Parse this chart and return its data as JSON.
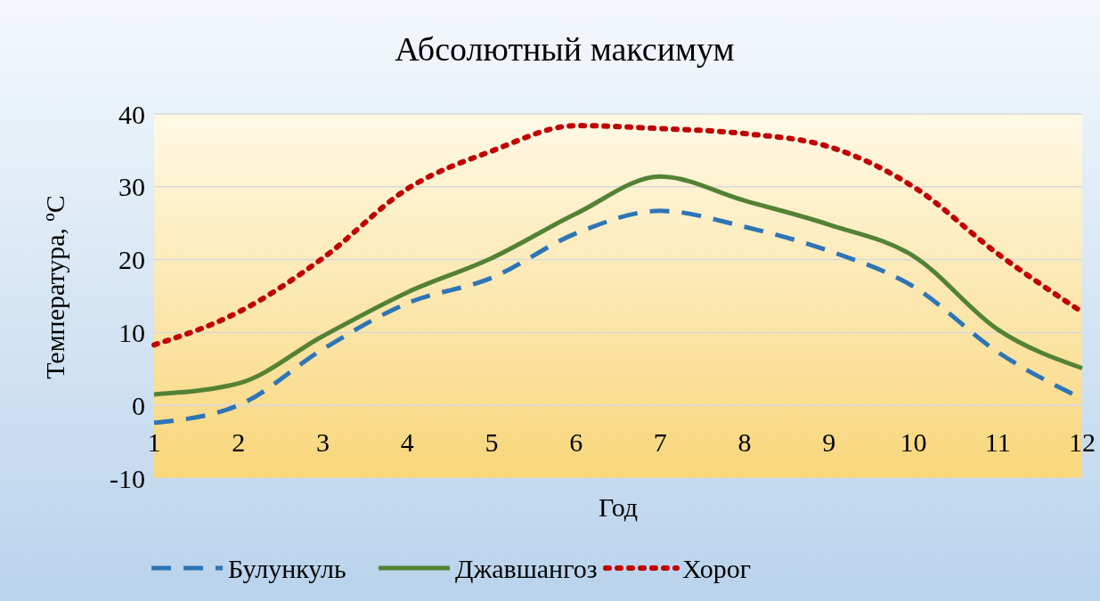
{
  "chart_data": {
    "type": "line",
    "title": "Абсолютный максимум",
    "xlabel": "Год",
    "ylabel": "Температура, ºС",
    "x": [
      1,
      2,
      3,
      4,
      5,
      6,
      7,
      8,
      9,
      10,
      11,
      12
    ],
    "xlim": [
      1,
      12
    ],
    "xticks": [
      1,
      2,
      3,
      4,
      5,
      6,
      7,
      8,
      9,
      10,
      11,
      12
    ],
    "ylim": [
      -10,
      40
    ],
    "yticks": [
      -10,
      0,
      10,
      20,
      30,
      40
    ],
    "grid": "y",
    "legend": "bottom",
    "series": [
      {
        "name": "Булункуль",
        "color": "#2e75b6",
        "line_style": "dashed",
        "values": [
          -2.4,
          0,
          7.7,
          14,
          17.5,
          23.6,
          26.7,
          24.5,
          21.2,
          16.3,
          7.3,
          0.9
        ]
      },
      {
        "name": "Джавшангоз",
        "color": "#548235",
        "line_style": "solid",
        "values": [
          1.5,
          3,
          9.5,
          15.5,
          20.2,
          26.3,
          31.4,
          28.1,
          24.8,
          20.5,
          10.4,
          5.1
        ]
      },
      {
        "name": "Хорог",
        "color": "#c00000",
        "line_style": "dotted",
        "values": [
          8.3,
          12.8,
          20.2,
          29.7,
          34.9,
          38.4,
          38,
          37.3,
          35.5,
          30,
          20.8,
          12.8
        ]
      }
    ]
  }
}
